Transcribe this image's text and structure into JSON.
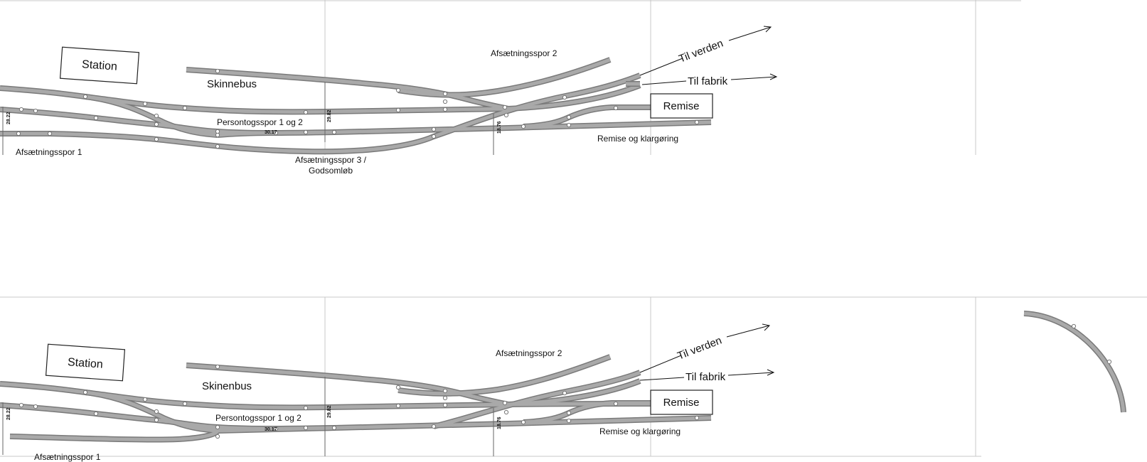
{
  "top": {
    "station": "Station",
    "skinnebus": "Skinnebus",
    "afs1": "Afsætningsspor 1",
    "afs2": "Afsætningsspor 2",
    "afs3_line1": "Afsætningsspor 3 /",
    "afs3_line2": "Godsomløb",
    "persontog": "Persontogsspor 1 og 2",
    "til_verden": "Til verden",
    "til_fabrik": "Til fabrik",
    "remise": "Remise",
    "remise_klar": "Remise og klargøring",
    "dim_left": "28.22",
    "dim_mid": "29.82",
    "dim_small": "30.17",
    "dim_right": "18.76"
  },
  "bottom": {
    "station": "Station",
    "skinnebus": "Skinenbus",
    "afs1": "Afsætningsspor 1",
    "afs2": "Afsætningsspor 2",
    "persontog": "Persontogsspor 1 og 2",
    "til_verden": "Til verden",
    "til_fabrik": "Til fabrik",
    "remise": "Remise",
    "remise_klar": "Remise og klargøring",
    "dim_left": "28.22",
    "dim_mid": "29.82",
    "dim_small": "30.17",
    "dim_right": "18.76"
  }
}
